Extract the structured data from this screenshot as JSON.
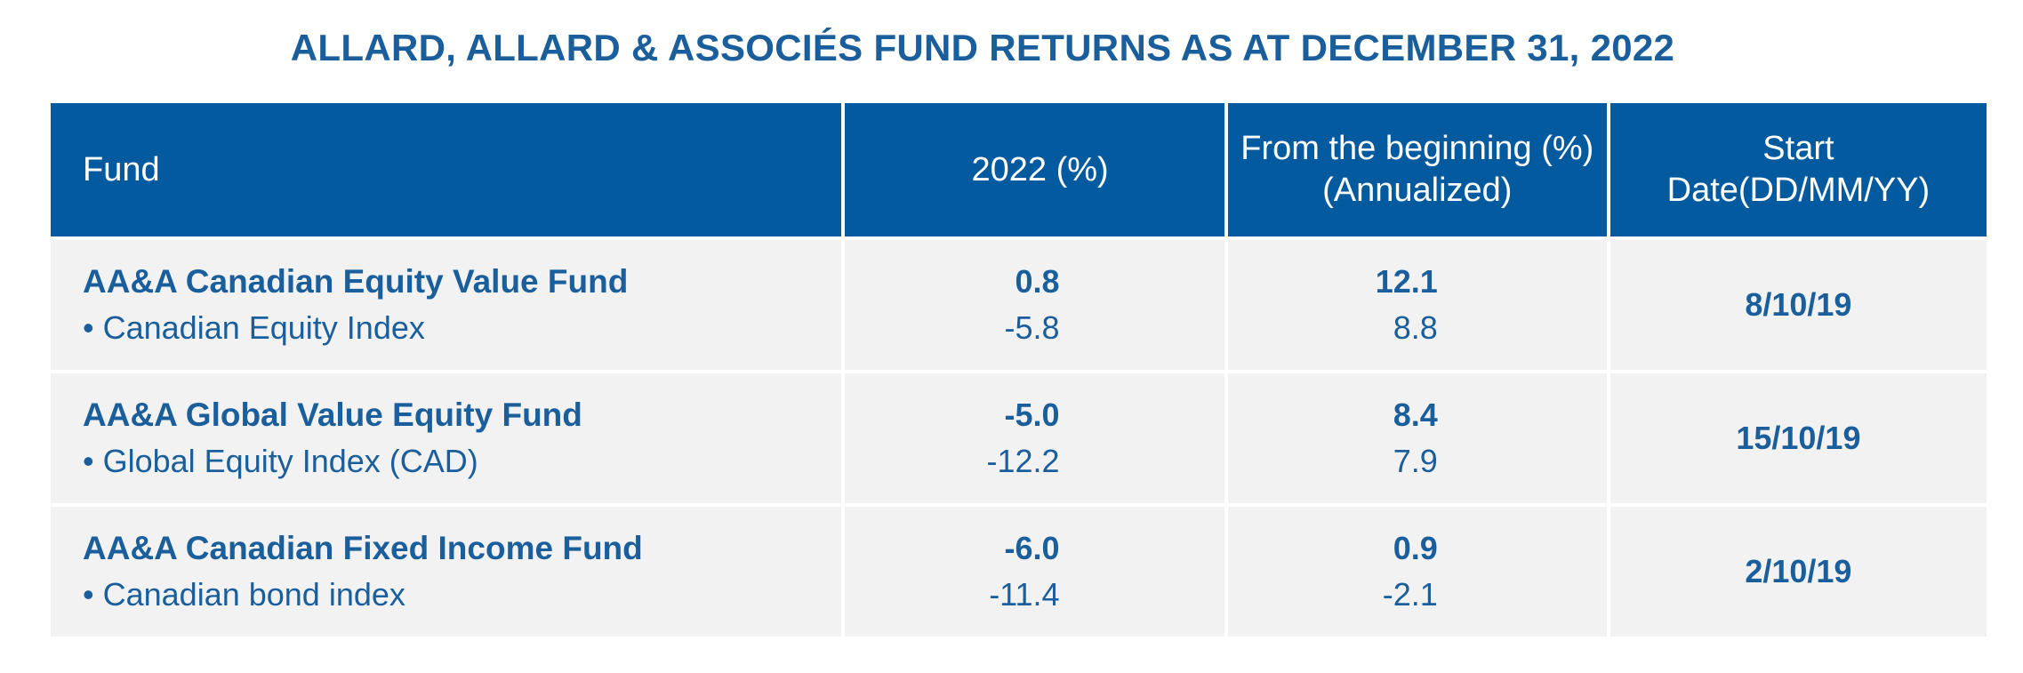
{
  "title": "ALLARD, ALLARD & ASSOCIÉS FUND RETURNS AS AT DECEMBER 31, 2022",
  "headers": {
    "fund": "Fund",
    "year": "2022 (%)",
    "since": "From the beginning (%) (Annualized)",
    "start": "Start Date(DD/MM/YY)"
  },
  "rows": [
    {
      "fund": "AA&A Canadian Equity Value Fund",
      "benchmark": "• Canadian Equity Index",
      "fund_2022": "0.8",
      "bench_2022": "-5.8",
      "fund_since": "12.1",
      "bench_since": "8.8",
      "start": "8/10/19"
    },
    {
      "fund": "AA&A Global Value Equity Fund",
      "benchmark": "• Global Equity Index (CAD)",
      "fund_2022": "-5.0",
      "bench_2022": "-12.2",
      "fund_since": "8.4",
      "bench_since": "7.9",
      "start": "15/10/19"
    },
    {
      "fund": "AA&A Canadian Fixed Income Fund",
      "benchmark": "• Canadian bond index",
      "fund_2022": "-6.0",
      "bench_2022": "-11.4",
      "fund_since": "0.9",
      "bench_since": "-2.1",
      "start": "2/10/19"
    }
  ],
  "colors": {
    "header_bg": "#035a9e",
    "text": "#1a5e9c",
    "row_bg": "#f2f2f2"
  }
}
